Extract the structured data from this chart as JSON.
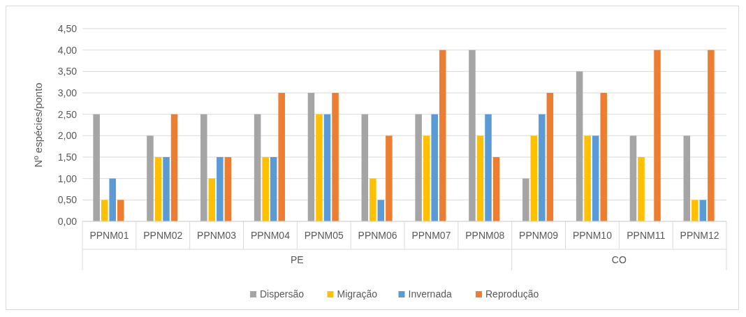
{
  "chart_data": {
    "type": "bar",
    "ylabel": "Nº espécies/ponto",
    "categories": [
      "PPNM01",
      "PPNM02",
      "PPNM03",
      "PPNM04",
      "PPNM05",
      "PPNM06",
      "PPNM07",
      "PPNM08",
      "PPNM09",
      "PPNM10",
      "PPNM11",
      "PPNM12"
    ],
    "series": [
      {
        "name": "Dispersão",
        "color": "#a5a5a5",
        "values": [
          2.5,
          2.0,
          2.5,
          2.5,
          3.0,
          2.5,
          2.5,
          4.0,
          1.0,
          3.5,
          2.0,
          2.0
        ]
      },
      {
        "name": "Migração",
        "color": "#ffc000",
        "values": [
          0.5,
          1.5,
          1.0,
          1.5,
          2.5,
          1.0,
          2.0,
          2.0,
          2.0,
          2.0,
          1.5,
          0.5
        ]
      },
      {
        "name": "Invernada",
        "color": "#5b9bd5",
        "values": [
          1.0,
          1.5,
          1.5,
          1.5,
          2.5,
          0.5,
          2.5,
          2.5,
          2.5,
          2.0,
          null,
          0.5
        ]
      },
      {
        "name": "Reprodução",
        "color": "#ed7d31",
        "values": [
          0.5,
          2.5,
          1.5,
          3.0,
          3.0,
          2.0,
          4.0,
          1.5,
          3.0,
          3.0,
          4.0,
          4.0
        ]
      }
    ],
    "ylim": [
      0,
      4.5
    ],
    "yticks": [
      {
        "value": 0,
        "label": "0,00"
      },
      {
        "value": 0.5,
        "label": "0,50"
      },
      {
        "value": 1,
        "label": "1,00"
      },
      {
        "value": 1.5,
        "label": "1,50"
      },
      {
        "value": 2,
        "label": "2,00"
      },
      {
        "value": 2.5,
        "label": "2,50"
      },
      {
        "value": 3,
        "label": "3,00"
      },
      {
        "value": 3.5,
        "label": "3,50"
      },
      {
        "value": 4,
        "label": "4,00"
      },
      {
        "value": 4.5,
        "label": "4,50"
      }
    ],
    "annotations": [
      "PE",
      "CO"
    ],
    "grid": "y",
    "legend": "bottom"
  }
}
